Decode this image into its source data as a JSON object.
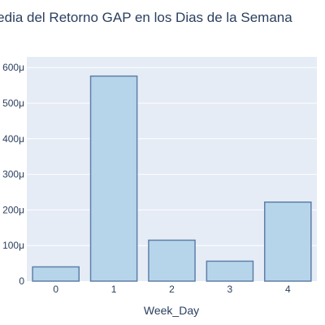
{
  "chart_data": {
    "type": "bar",
    "title": "Media del Retorno GAP en los Dias de la Semana",
    "xlabel": "Week_Day",
    "ylabel": "",
    "categories": [
      "0",
      "1",
      "2",
      "3",
      "4"
    ],
    "values": [
      4e-05,
      0.000576,
      0.000115,
      5.6e-05,
      0.000222
    ],
    "ylim": [
      0,
      0.00063
    ],
    "y_ticks": [
      0,
      0.0001,
      0.0002,
      0.0003,
      0.0004,
      0.0005,
      0.0006
    ],
    "y_tick_labels": [
      "0",
      "100μ",
      "200μ",
      "300μ",
      "400μ",
      "500μ",
      "600μ"
    ],
    "grid": true,
    "legend": "none",
    "colors": {
      "bar_fill": "#b7d5ea",
      "bar_stroke": "#5f7fa8",
      "plot_bg": "#e5ecf6",
      "grid": "#ffffff",
      "text": "#2a3f5f"
    }
  }
}
